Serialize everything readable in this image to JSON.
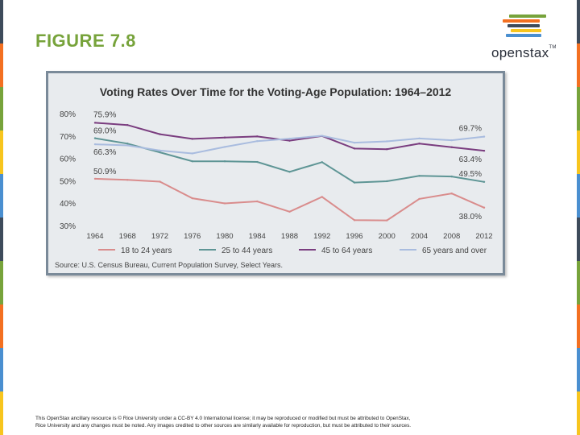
{
  "figure_label": "FIGURE 7.8",
  "logo": {
    "text": "openstax",
    "tm": "TM",
    "bar_colors": [
      "#77a33b",
      "#f37021",
      "#3e4b5b",
      "#f7c51e",
      "#4a8fd0"
    ]
  },
  "stripe_colors": [
    "#3e4b5b",
    "#f37021",
    "#77a33b",
    "#f7c51e",
    "#4a8fd0",
    "#3e4b5b",
    "#77a33b",
    "#f37021",
    "#4a8fd0",
    "#f7c51e"
  ],
  "chart_data": {
    "type": "line",
    "title": "Voting Rates Over Time for the Voting-Age Population: 1964–2012",
    "source": "Source: U.S. Census Bureau, Current Population Survey, Select Years.",
    "x": [
      1964,
      1968,
      1972,
      1976,
      1980,
      1984,
      1988,
      1992,
      1996,
      2000,
      2004,
      2008,
      2012
    ],
    "y_ticks": [
      "30%",
      "40%",
      "50%",
      "60%",
      "70%",
      "80%"
    ],
    "ylim": [
      30,
      80
    ],
    "grid": false,
    "legend_position": "bottom",
    "series": [
      {
        "name": "18 to 24 years",
        "color": "#d98c8c",
        "values": [
          50.9,
          50.4,
          49.6,
          42.2,
          39.9,
          40.8,
          36.2,
          42.8,
          32.4,
          32.3,
          41.9,
          44.3,
          38.0
        ],
        "start_label": "50.9%",
        "end_label": "38.0%"
      },
      {
        "name": "25 to 44 years",
        "color": "#5e9595",
        "values": [
          69.0,
          66.6,
          62.7,
          58.7,
          58.7,
          58.4,
          54.0,
          58.3,
          49.2,
          49.8,
          52.2,
          51.9,
          49.5
        ],
        "start_label": "69.0%",
        "end_label": "49.5%"
      },
      {
        "name": "45 to 64 years",
        "color": "#7a3d7f",
        "values": [
          75.9,
          74.9,
          70.8,
          68.7,
          69.3,
          69.8,
          67.9,
          70.0,
          64.4,
          64.1,
          66.6,
          65.0,
          63.4
        ],
        "start_label": "75.9%",
        "end_label": "63.4%"
      },
      {
        "name": "65 years and over",
        "color": "#a9bcdf",
        "values": [
          66.3,
          65.8,
          63.5,
          62.2,
          65.1,
          67.7,
          68.8,
          70.1,
          67.0,
          67.6,
          68.9,
          68.1,
          69.7
        ],
        "start_label": "66.3%",
        "end_label": "69.7%"
      }
    ]
  },
  "footer": {
    "line1": "This OpenStax ancillary resource is © Rice University under a CC-BY 4.0 International license; it may be reproduced or modified but must be attributed to OpenStax,",
    "line2": "Rice University and any changes must be noted. Any images credited to other sources are similarly available for reproduction, but must be attributed to their sources."
  }
}
